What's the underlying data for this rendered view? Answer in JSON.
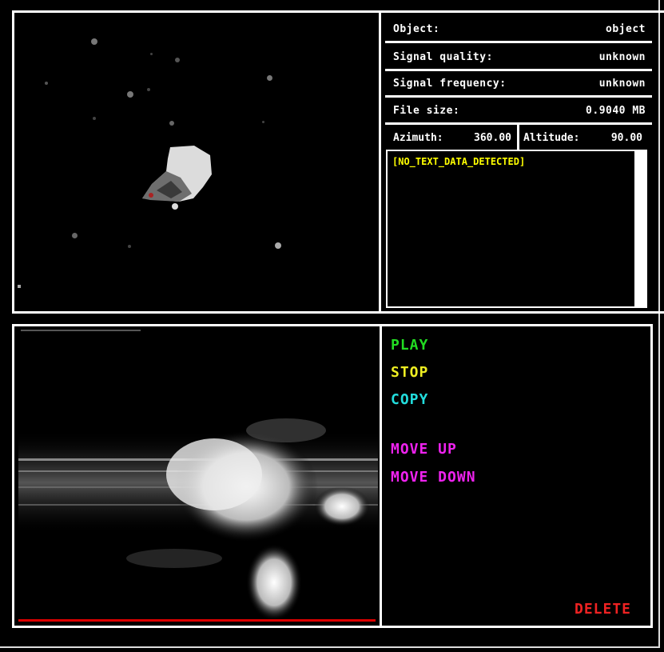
{
  "info": {
    "object": {
      "label": "Object:",
      "value": "object"
    },
    "signal_quality": {
      "label": "Signal quality:",
      "value": "unknown"
    },
    "signal_frequency": {
      "label": "Signal frequency:",
      "value": "unknown"
    },
    "file_size": {
      "label": "File size:",
      "value": "0.9040 MB"
    },
    "azimuth": {
      "label": "Azimuth:",
      "value": "360.00"
    },
    "altitude": {
      "label": "Altitude:",
      "value": "90.00"
    }
  },
  "text_output": "[NO_TEXT_DATA_DETECTED]",
  "controls": {
    "play": "PLAY",
    "stop": "STOP",
    "copy": "COPY",
    "move_up": "MOVE UP",
    "move_down": "MOVE DOWN",
    "delete": "DELETE"
  },
  "colors": {
    "play": "#22dd22",
    "stop": "#eeee22",
    "copy": "#22dddd",
    "move": "#ee22ee",
    "delete": "#ee2222",
    "text_output": "#ffff00"
  },
  "playback_progress": 1.0
}
